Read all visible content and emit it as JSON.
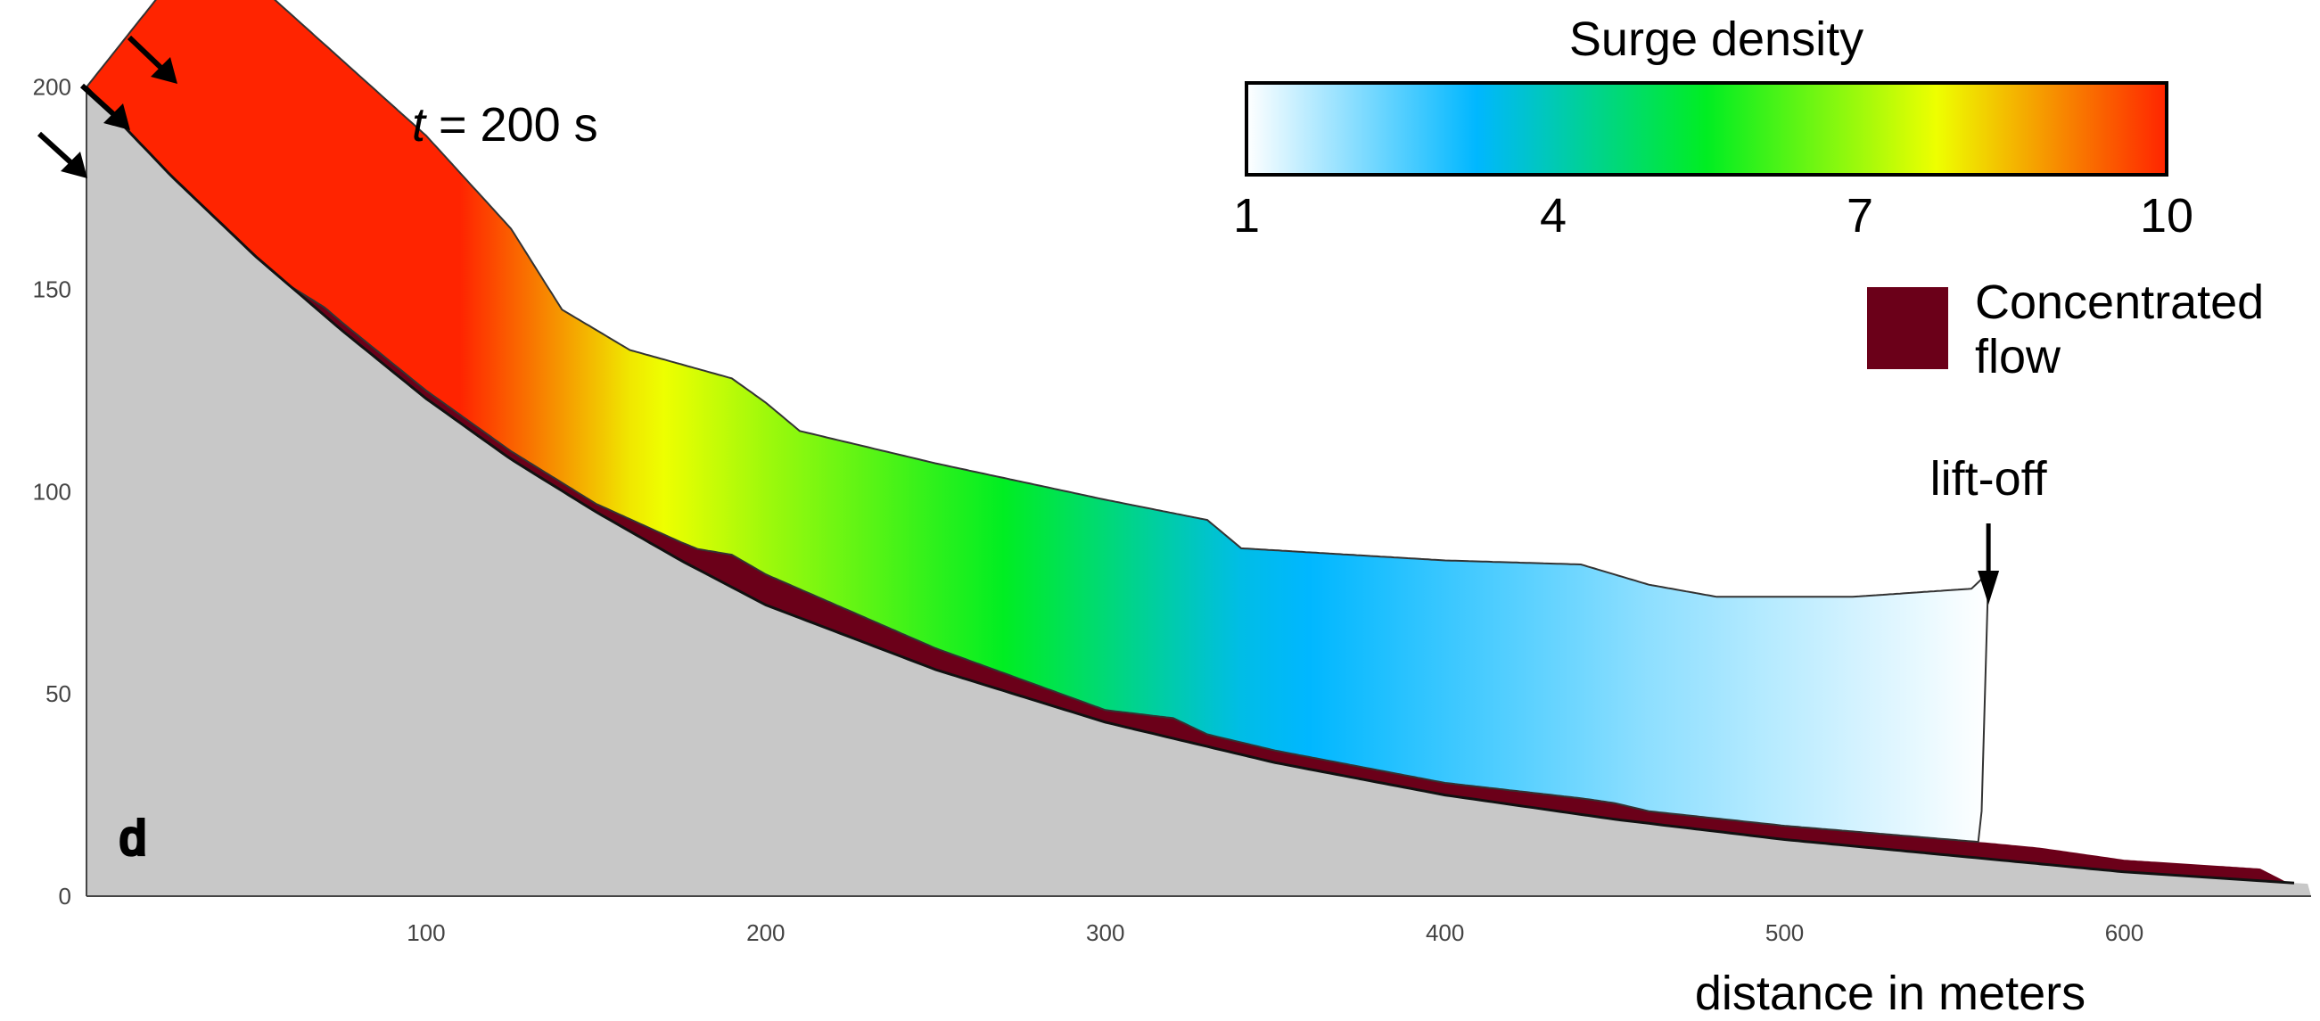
{
  "chart_data": {
    "type": "area",
    "panel_label": "d",
    "time_label": {
      "var": "t",
      "rest": " = 200 s"
    },
    "xlabel": "distance in meters",
    "ylabel": "",
    "xlim": [
      0,
      655
    ],
    "ylim": [
      0,
      205
    ],
    "x_ticks": [
      100,
      200,
      300,
      400,
      500,
      600
    ],
    "y_ticks": [
      0,
      50,
      100,
      150,
      200
    ],
    "grid": false,
    "colorbar": {
      "title": "Surge density",
      "min": 1,
      "max": 10,
      "ticks": [
        1,
        4,
        7,
        10
      ],
      "colors": [
        "#ffffff",
        "#00b7ff",
        "#00ee22",
        "#eeff00",
        "#ff2400"
      ]
    },
    "legend": [
      {
        "label_line1": "Concentrated",
        "label_line2": "flow",
        "color": "#6b0019"
      }
    ],
    "annotation": {
      "text": "lift-off",
      "x": 560
    },
    "ground_profile": {
      "x": [
        0,
        25,
        50,
        75,
        100,
        125,
        150,
        175,
        200,
        250,
        300,
        350,
        400,
        450,
        500,
        550,
        600,
        655
      ],
      "y": [
        200,
        178,
        158,
        140,
        123,
        108,
        95,
        83,
        72,
        56,
        43,
        33,
        25,
        19,
        14,
        10,
        6,
        3
      ]
    },
    "surge_top": {
      "x": [
        0,
        35,
        100,
        125,
        140,
        160,
        190,
        200,
        210,
        250,
        300,
        330,
        340,
        400,
        440,
        460,
        480,
        520,
        555,
        560
      ],
      "y": [
        200,
        237,
        188,
        165,
        145,
        135,
        128,
        122,
        115,
        107,
        98,
        93,
        86,
        83,
        82,
        77,
        74,
        74,
        76,
        80
      ]
    },
    "surge_density_along_x": {
      "x": [
        0,
        110,
        160,
        200,
        270,
        340,
        460,
        560
      ],
      "density": [
        10,
        10,
        8,
        7,
        5.5,
        3.5,
        2,
        1
      ]
    },
    "concentrated_flow": {
      "x": [
        60,
        70,
        150,
        180,
        190,
        300,
        320,
        330,
        400,
        440,
        450,
        460,
        560,
        575,
        600,
        640,
        648
      ],
      "thickness": [
        0,
        2,
        2,
        5,
        8,
        3,
        5,
        3,
        3,
        4,
        4,
        3,
        4,
        4,
        3,
        3,
        0
      ]
    },
    "surge_end_x": 560,
    "surge_base_y_at_end": 21
  }
}
